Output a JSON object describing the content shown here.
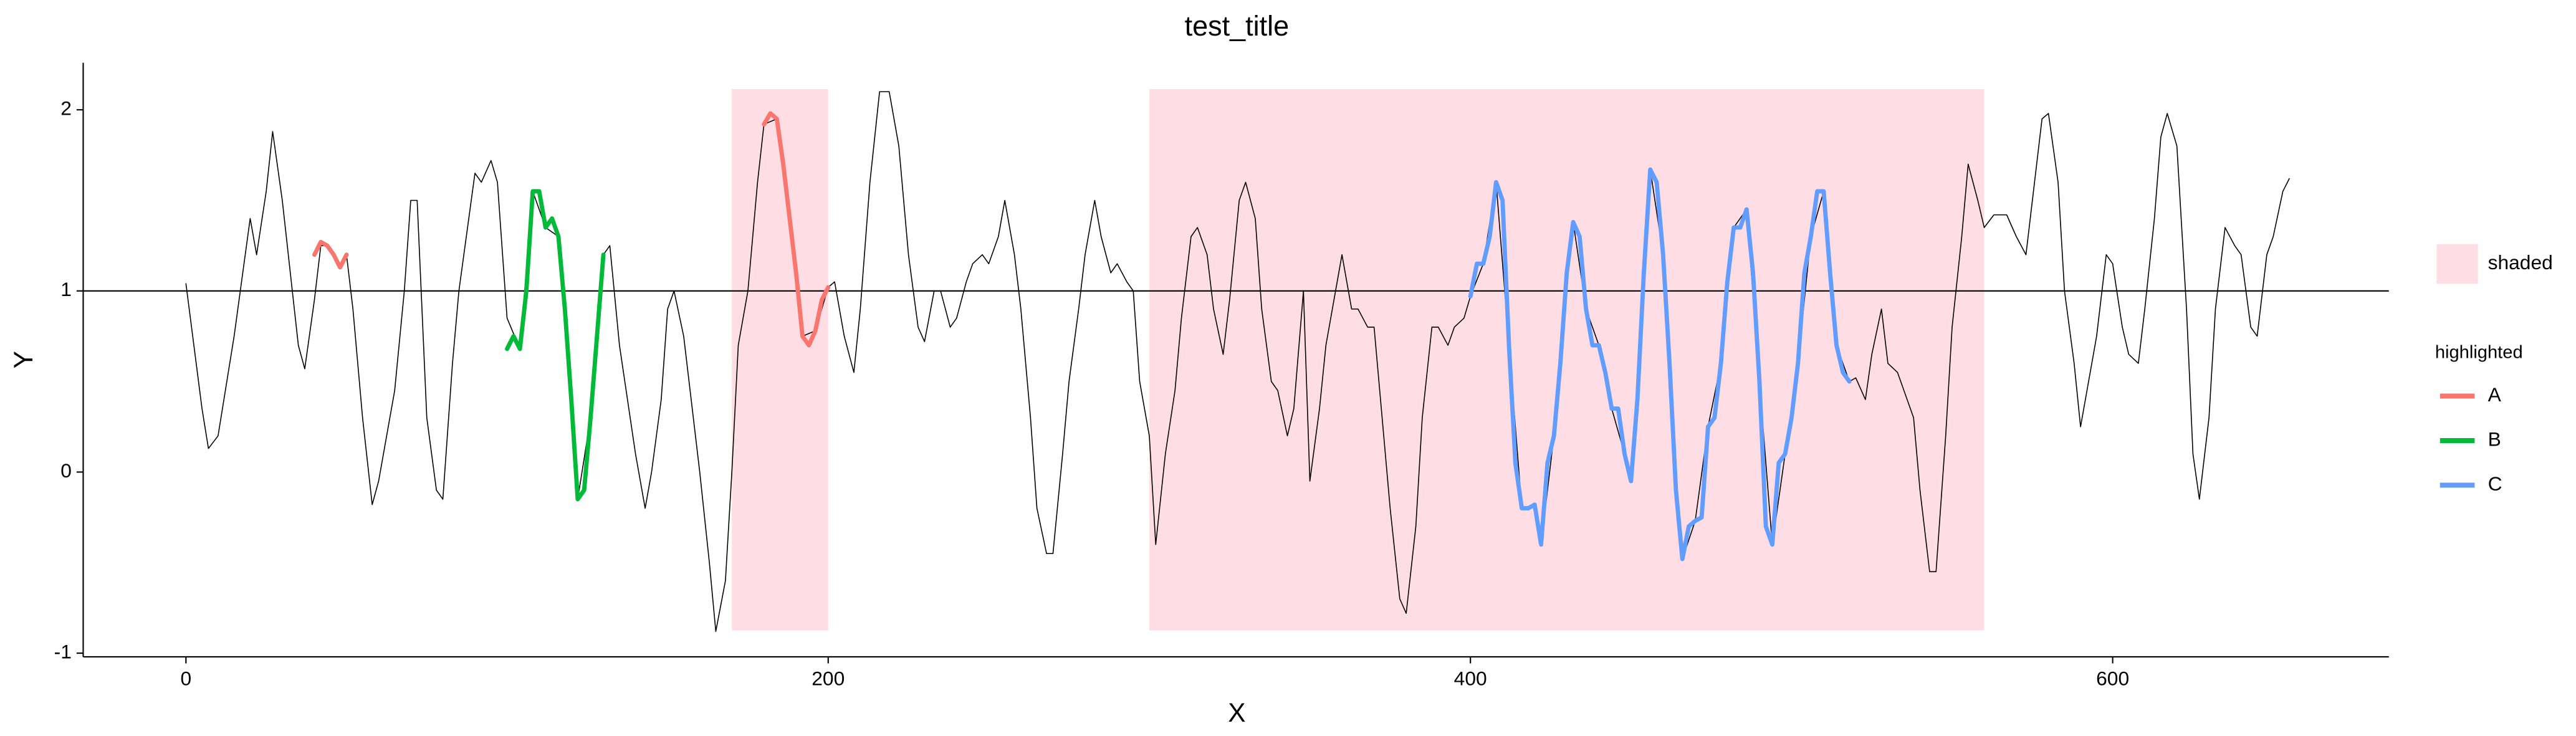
{
  "chart_data": {
    "type": "line",
    "title": "test_title",
    "x_label": "X",
    "y_label": "Y",
    "xlim": [
      -32,
      686
    ],
    "ylim": [
      -1.02,
      2.26
    ],
    "xticks": [
      0,
      200,
      400,
      600
    ],
    "yticks": [
      -1,
      0,
      1,
      2
    ],
    "hline": 1,
    "hline_color": "#000000",
    "shaded_regions": [
      {
        "xmin": 170,
        "xmax": 200
      },
      {
        "xmin": 300,
        "xmax": 560
      }
    ],
    "shaded_color": "#ffdde4",
    "shaded_label": "shaded",
    "legend_title": "highlighted",
    "line": {
      "color": "#000000",
      "x": [
        0,
        5,
        7,
        10,
        15,
        20,
        22,
        25,
        27,
        30,
        35,
        37,
        40,
        42,
        44,
        46,
        48,
        50,
        52,
        55,
        58,
        60,
        65,
        68,
        70,
        72,
        75,
        78,
        80,
        83,
        85,
        90,
        92,
        95,
        97,
        100,
        104,
        108,
        112,
        116,
        120,
        122,
        126,
        130,
        132,
        135,
        140,
        143,
        145,
        148,
        150,
        152,
        155,
        158,
        160,
        163,
        165,
        168,
        170,
        172,
        175,
        178,
        180,
        184,
        188,
        192,
        196,
        200,
        202,
        205,
        208,
        210,
        213,
        216,
        219,
        222,
        225,
        228,
        230,
        233,
        235,
        238,
        240,
        243,
        245,
        248,
        250,
        253,
        255,
        258,
        260,
        263,
        265,
        268,
        270,
        273,
        275,
        278,
        280,
        283,
        285,
        288,
        290,
        293,
        295,
        297,
        300,
        302,
        305,
        308,
        310,
        313,
        315,
        318,
        320,
        323,
        325,
        328,
        330,
        333,
        335,
        338,
        340,
        343,
        345,
        348,
        350,
        353,
        355,
        358,
        360,
        363,
        365,
        368,
        370,
        373,
        375,
        378,
        380,
        383,
        385,
        388,
        390,
        393,
        395,
        398,
        400,
        404,
        408,
        412,
        416,
        420,
        422,
        426,
        430,
        432,
        436,
        440,
        444,
        448,
        450,
        454,
        456,
        460,
        464,
        466,
        470,
        474,
        478,
        482,
        486,
        490,
        494,
        498,
        502,
        506,
        510,
        514,
        518,
        520,
        523,
        525,
        528,
        530,
        533,
        535,
        538,
        540,
        543,
        545,
        548,
        550,
        553,
        555,
        558,
        560,
        563,
        567,
        570,
        573,
        575,
        578,
        580,
        583,
        585,
        588,
        590,
        593,
        595,
        598,
        600,
        603,
        605,
        608,
        610,
        613,
        615,
        617,
        620,
        623,
        625,
        627,
        630,
        632,
        635,
        638,
        640,
        643,
        645,
        648,
        650,
        653,
        655
      ],
      "values": [
        1.04,
        0.35,
        0.13,
        0.2,
        0.75,
        1.4,
        1.2,
        1.55,
        1.88,
        1.5,
        0.7,
        0.57,
        0.95,
        1.25,
        1.25,
        1.2,
        1.13,
        1.2,
        0.9,
        0.3,
        -0.18,
        -0.05,
        0.45,
        1.0,
        1.5,
        1.5,
        0.3,
        -0.1,
        -0.15,
        0.6,
        1.0,
        1.65,
        1.6,
        1.72,
        1.6,
        0.85,
        0.68,
        1.55,
        1.35,
        1.3,
        0.4,
        -0.15,
        0.3,
        1.2,
        1.25,
        0.7,
        0.1,
        -0.2,
        0.0,
        0.4,
        0.9,
        1.0,
        0.75,
        0.3,
        0.0,
        -0.5,
        -0.88,
        -0.6,
        0.0,
        0.7,
        1.0,
        1.6,
        1.92,
        1.95,
        1.4,
        0.75,
        0.78,
        1.02,
        1.05,
        0.75,
        0.55,
        0.9,
        1.6,
        2.1,
        2.1,
        1.8,
        1.2,
        0.8,
        0.72,
        1.0,
        1.0,
        0.8,
        0.85,
        1.05,
        1.15,
        1.2,
        1.15,
        1.3,
        1.5,
        1.2,
        0.9,
        0.3,
        -0.2,
        -0.45,
        -0.45,
        0.1,
        0.5,
        0.9,
        1.2,
        1.5,
        1.3,
        1.1,
        1.15,
        1.05,
        1.0,
        0.5,
        0.2,
        -0.4,
        0.1,
        0.45,
        0.85,
        1.3,
        1.35,
        1.2,
        0.9,
        0.65,
        0.95,
        1.5,
        1.6,
        1.4,
        0.9,
        0.5,
        0.45,
        0.2,
        0.35,
        1.0,
        -0.05,
        0.35,
        0.7,
        1.0,
        1.2,
        0.9,
        0.9,
        0.8,
        0.8,
        0.2,
        -0.2,
        -0.7,
        -0.78,
        -0.3,
        0.3,
        0.8,
        0.8,
        0.7,
        0.8,
        0.85,
        0.97,
        1.15,
        1.6,
        0.7,
        -0.2,
        -0.18,
        -0.4,
        0.2,
        1.1,
        1.38,
        0.9,
        0.7,
        0.35,
        0.1,
        -0.05,
        1.1,
        1.67,
        1.2,
        -0.1,
        -0.48,
        -0.27,
        0.25,
        0.6,
        1.35,
        1.45,
        0.5,
        -0.4,
        0.1,
        0.6,
        1.3,
        1.55,
        0.7,
        0.5,
        0.52,
        0.4,
        0.65,
        0.9,
        0.6,
        0.55,
        0.45,
        0.3,
        -0.1,
        -0.55,
        -0.55,
        0.2,
        0.8,
        1.3,
        1.7,
        1.5,
        1.35,
        1.42,
        1.42,
        1.3,
        1.2,
        1.5,
        1.95,
        1.98,
        1.6,
        1.0,
        0.6,
        0.25,
        0.55,
        0.75,
        1.2,
        1.15,
        0.8,
        0.65,
        0.6,
        0.9,
        1.4,
        1.85,
        1.98,
        1.8,
        0.9,
        0.1,
        -0.15,
        0.3,
        0.9,
        1.35,
        1.25,
        1.2,
        0.8,
        0.75,
        1.2,
        1.3,
        1.55,
        1.62
      ]
    },
    "series": [
      {
        "name": "A",
        "color": "#F8766D",
        "x": [
          40,
          42,
          44,
          46,
          48,
          50,
          60,
          180,
          182,
          184,
          186,
          188,
          190,
          192,
          194,
          196,
          198,
          200
        ],
        "values": [
          1.2,
          1.27,
          1.25,
          1.2,
          1.13,
          1.2,
          null,
          1.92,
          1.98,
          1.95,
          1.7,
          1.4,
          1.1,
          0.75,
          0.7,
          0.78,
          0.95,
          1.02
        ]
      },
      {
        "name": "B",
        "color": "#00BA38",
        "x": [
          100,
          102,
          104,
          106,
          108,
          110,
          112,
          114,
          116,
          118,
          120,
          122,
          124,
          126,
          128,
          130
        ],
        "values": [
          0.68,
          0.75,
          0.68,
          1.0,
          1.55,
          1.55,
          1.35,
          1.4,
          1.3,
          0.9,
          0.4,
          -0.15,
          -0.1,
          0.3,
          0.75,
          1.2
        ]
      },
      {
        "name": "C",
        "color": "#619CFF",
        "x": [
          400,
          402,
          404,
          406,
          408,
          410,
          412,
          414,
          416,
          418,
          420,
          422,
          424,
          426,
          428,
          430,
          432,
          434,
          436,
          438,
          440,
          442,
          444,
          446,
          448,
          450,
          452,
          454,
          456,
          458,
          460,
          462,
          464,
          466,
          468,
          470,
          472,
          474,
          476,
          478,
          480,
          482,
          484,
          486,
          488,
          490,
          492,
          494,
          496,
          498,
          500,
          502,
          504,
          506,
          508,
          510,
          512,
          514,
          516,
          518
        ],
        "values": [
          0.97,
          1.15,
          1.15,
          1.3,
          1.6,
          1.5,
          0.7,
          0.05,
          -0.2,
          -0.2,
          -0.18,
          -0.4,
          0.05,
          0.2,
          0.6,
          1.1,
          1.38,
          1.3,
          0.9,
          0.7,
          0.7,
          0.55,
          0.35,
          0.35,
          0.1,
          -0.05,
          0.4,
          1.1,
          1.67,
          1.6,
          1.2,
          0.6,
          -0.1,
          -0.48,
          -0.3,
          -0.27,
          -0.25,
          0.25,
          0.3,
          0.6,
          1.05,
          1.35,
          1.35,
          1.45,
          1.1,
          0.5,
          -0.3,
          -0.4,
          0.05,
          0.1,
          0.3,
          0.6,
          1.1,
          1.3,
          1.55,
          1.55,
          1.1,
          0.7,
          0.55,
          0.5
        ]
      }
    ]
  }
}
